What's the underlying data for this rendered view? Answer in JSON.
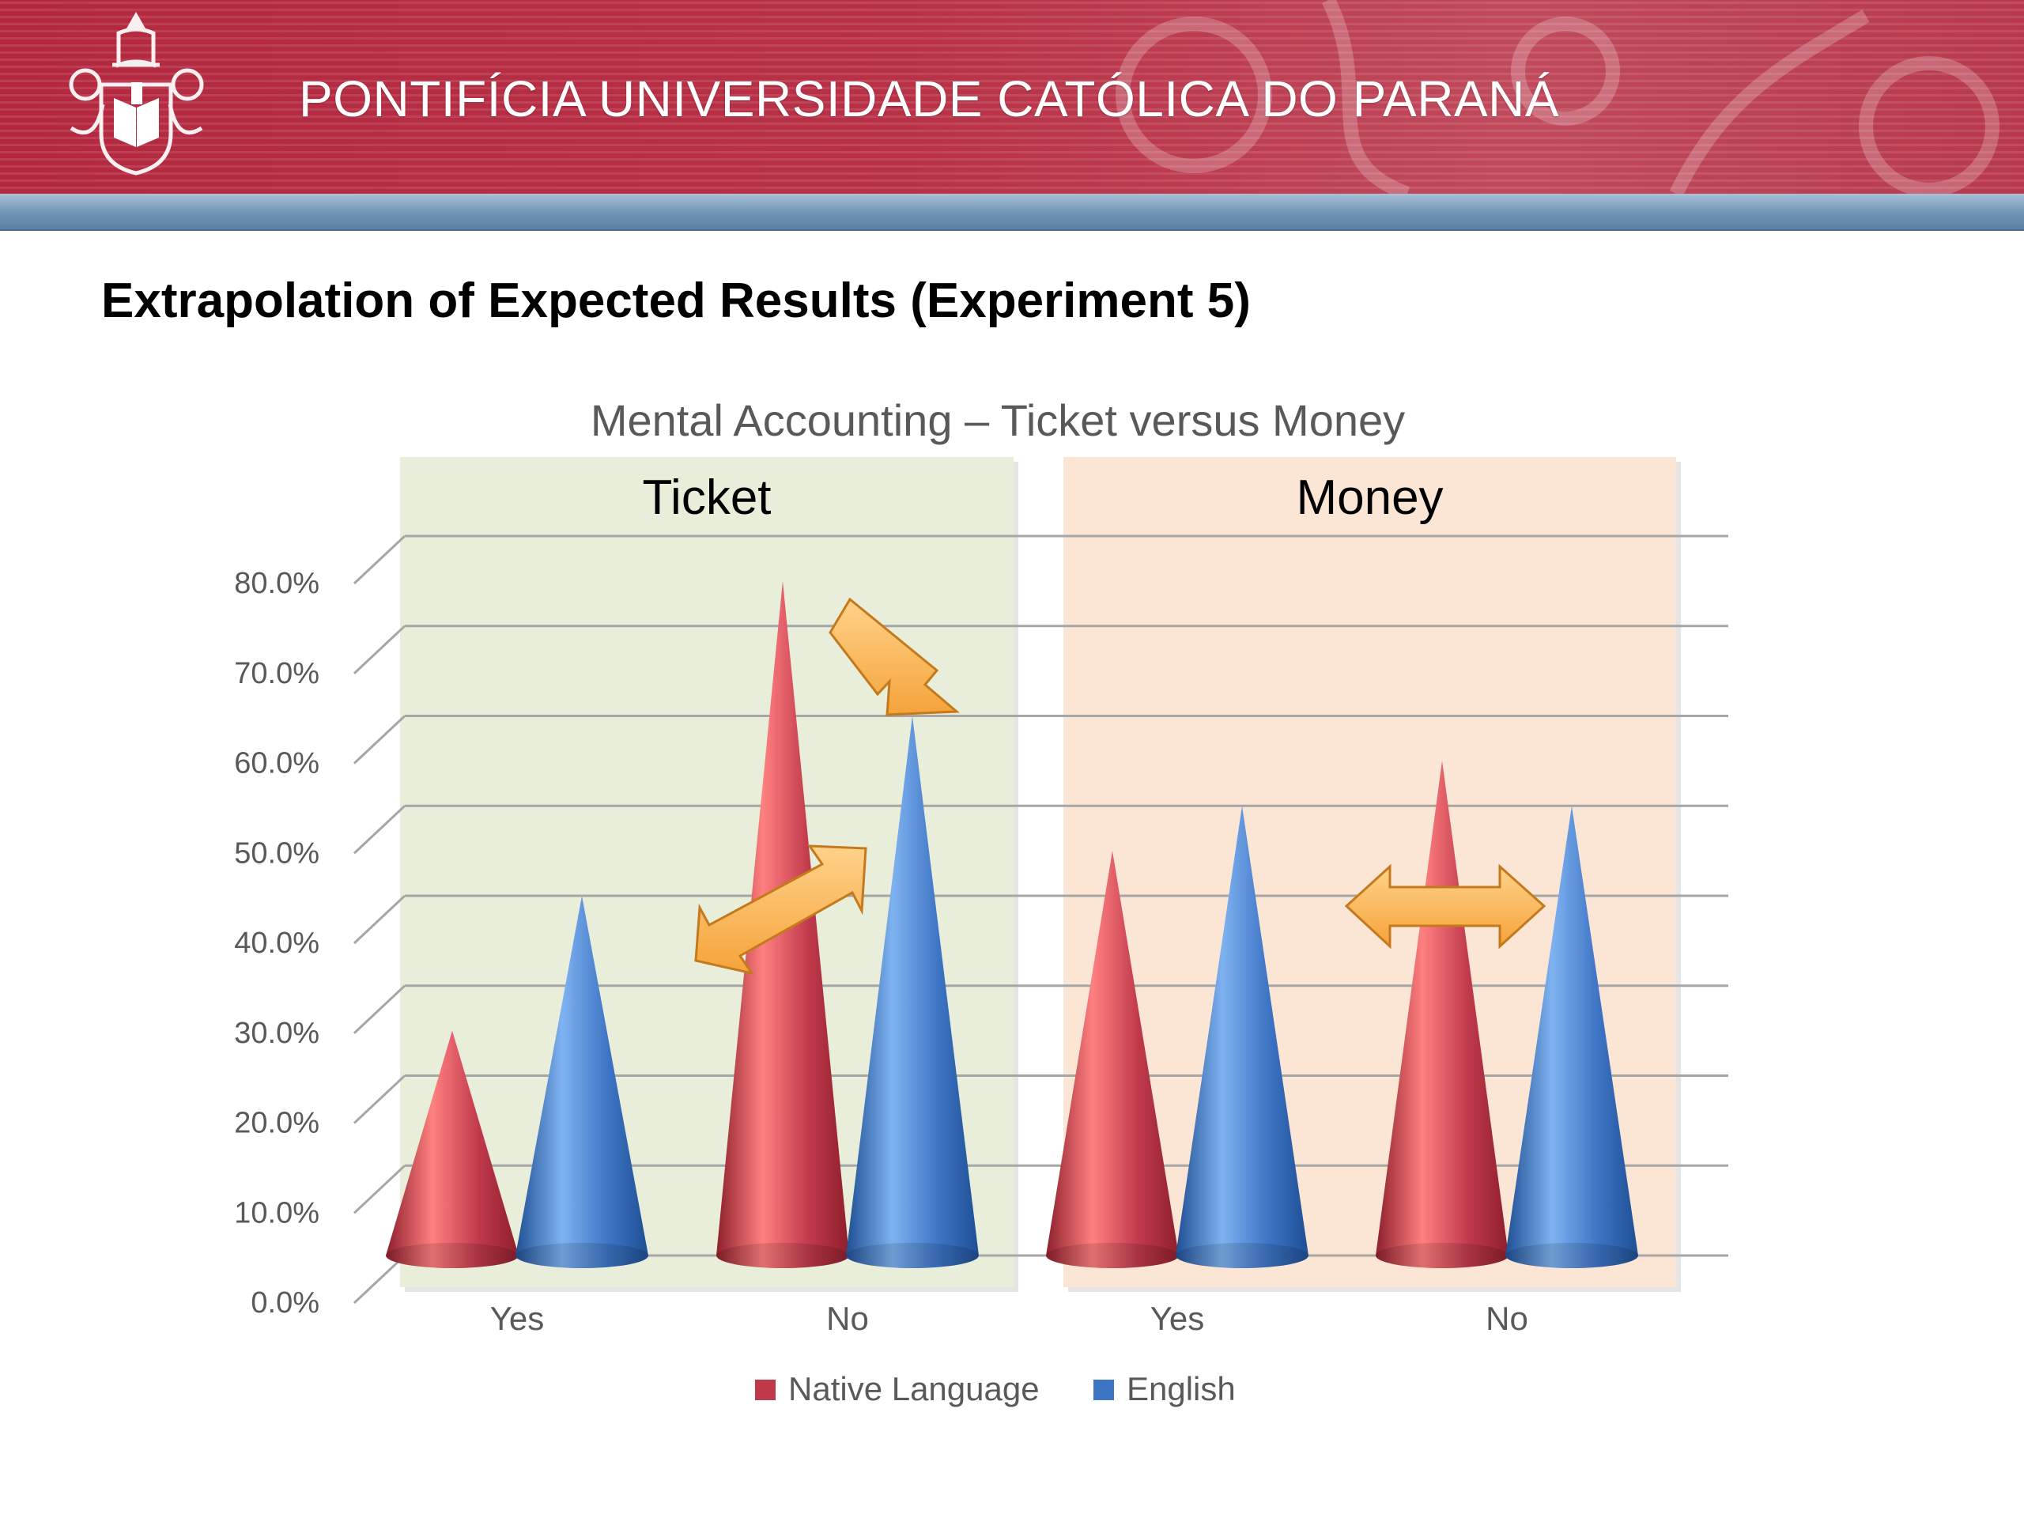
{
  "header": {
    "university_name": "PONTIFÍCIA UNIVERSIDADE CATÓLICA DO PARANÁ",
    "colors": {
      "banner": "#b3283f",
      "bar": "#7598b8"
    }
  },
  "slide": {
    "title": "Extrapolation of Expected Results (Experiment 5)"
  },
  "chart_data": {
    "type": "bar",
    "bar_shape": "cone",
    "title": "Mental Accounting – Ticket versus Money",
    "groups": [
      {
        "label": "Ticket",
        "color": "#e9eedb",
        "categories": [
          "Yes",
          "No"
        ]
      },
      {
        "label": "Money",
        "color": "#fbe6d6",
        "categories": [
          "Yes",
          "No"
        ]
      }
    ],
    "categories": [
      "Yes",
      "No",
      "Yes",
      "No"
    ],
    "series": [
      {
        "name": "Native Language",
        "color": "#c0394b",
        "values": [
          25,
          75,
          45,
          55
        ]
      },
      {
        "name": "English",
        "color": "#3d74c4",
        "values": [
          40,
          60,
          50,
          50
        ]
      }
    ],
    "y_tick_labels": [
      "0.0%",
      "10.0%",
      "20.0%",
      "30.0%",
      "40.0%",
      "50.0%",
      "60.0%",
      "70.0%",
      "80.0%"
    ],
    "ylim": [
      0,
      80
    ],
    "y_step": 10,
    "grid": true,
    "legend_position": "bottom",
    "annotations": [
      {
        "shape": "arrow",
        "group": "Ticket",
        "category": "No",
        "direction": "down-right",
        "color": "#f5a33a"
      },
      {
        "shape": "double-arrow",
        "group": "Ticket",
        "category": "No",
        "direction": "diagonal",
        "color": "#f5a33a"
      },
      {
        "shape": "double-arrow",
        "group": "Money",
        "category": "No",
        "direction": "horizontal",
        "color": "#f5a33a"
      }
    ]
  }
}
